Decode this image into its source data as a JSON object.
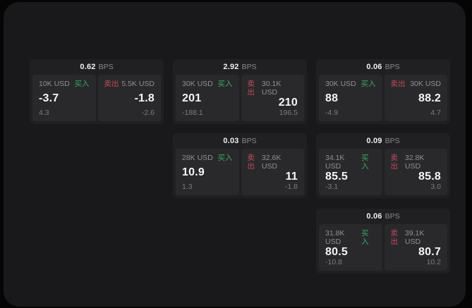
{
  "labels": {
    "bps_unit": "BPS",
    "buy": "买入",
    "sell": "卖出"
  },
  "colors": {
    "background": "#050505",
    "panel": "#19191b",
    "card": "#202022",
    "tile": "#29292b",
    "buy_green": "#3fa369",
    "sell_red": "#c04a5e",
    "text_primary": "#f5f5f6",
    "text_muted": "#909095"
  },
  "cards": [
    {
      "bps": "0.62",
      "row": 1,
      "col": 1,
      "buy": {
        "size": "10K USD",
        "price": "-3.7",
        "skew": "4.3"
      },
      "sell": {
        "size": "5.5K USD",
        "price": "-1.8",
        "skew": "-2.6"
      }
    },
    {
      "bps": "2.92",
      "row": 1,
      "col": 2,
      "buy": {
        "size": "30K USD",
        "price": "201",
        "skew": "-188.1"
      },
      "sell": {
        "size": "30.1K USD",
        "price": "210",
        "skew": "196.5"
      }
    },
    {
      "bps": "0.06",
      "row": 1,
      "col": 3,
      "buy": {
        "size": "30K USD",
        "price": "88",
        "skew": "-4.9"
      },
      "sell": {
        "size": "30K USD",
        "price": "88.2",
        "skew": "4.7"
      }
    },
    {
      "bps": "0.03",
      "row": 2,
      "col": 2,
      "buy": {
        "size": "28K USD",
        "price": "10.9",
        "skew": "1.3"
      },
      "sell": {
        "size": "32.6K USD",
        "price": "11",
        "skew": "-1.8"
      }
    },
    {
      "bps": "0.09",
      "row": 2,
      "col": 3,
      "buy": {
        "size": "34.1K USD",
        "price": "85.5",
        "skew": "-3.1"
      },
      "sell": {
        "size": "32.8K USD",
        "price": "85.8",
        "skew": "3.0"
      }
    },
    {
      "bps": "0.06",
      "row": 3,
      "col": 3,
      "buy": {
        "size": "31.8K USD",
        "price": "80.5",
        "skew": "-10.8"
      },
      "sell": {
        "size": "39.1K USD",
        "price": "80.7",
        "skew": "10.2"
      }
    }
  ]
}
